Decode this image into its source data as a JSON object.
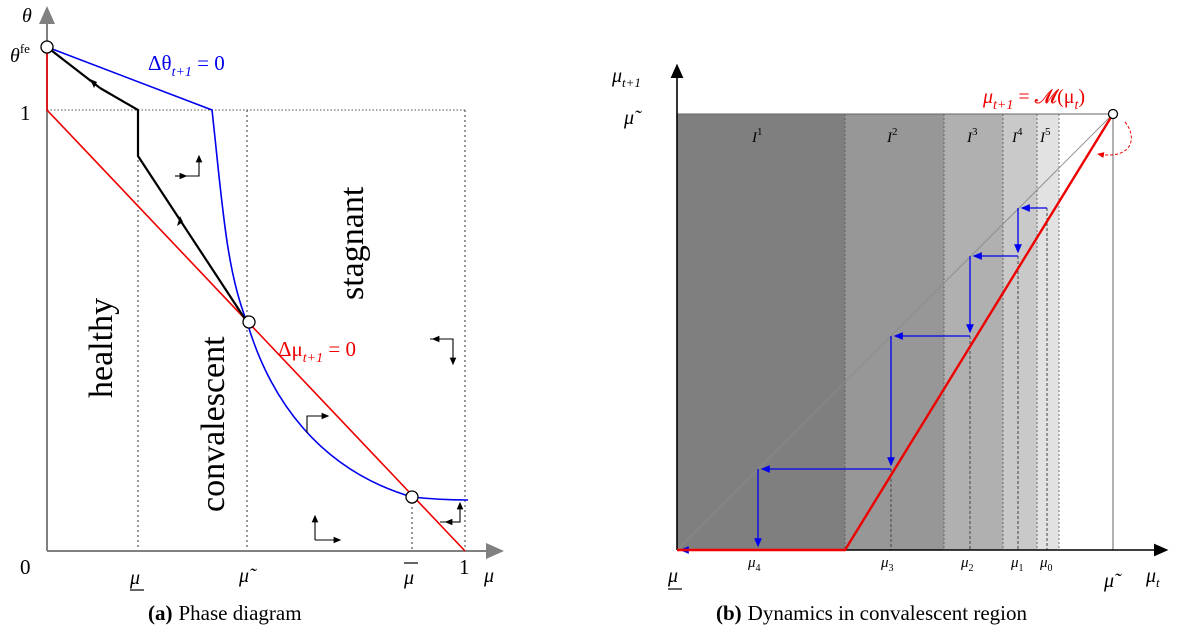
{
  "panel_a": {
    "caption_label": "(a)",
    "caption_text": "Phase diagram",
    "y_axis_label": "θ",
    "x_axis_label": "μ",
    "y_ticks": {
      "theta_fe": "θ",
      "theta_fe_sup": "fe",
      "one": "1",
      "zero": "0"
    },
    "x_ticks": {
      "mu_under": "μ",
      "mu_tilde": "μ̃",
      "mu_bar": "μ",
      "one": "1"
    },
    "region_labels": {
      "healthy": "healthy",
      "convalescent": "convalescent",
      "stagnant": "stagnant"
    },
    "curve_labels": {
      "delta_theta": "Δθ",
      "delta_theta_sub": "t+1",
      "delta_theta_rhs": " = 0",
      "delta_mu": "Δμ",
      "delta_mu_sub": "t+1",
      "delta_mu_rhs": " = 0"
    },
    "colors": {
      "delta_theta": "#0000ee",
      "delta_mu": "#ee0000",
      "path": "#000000"
    }
  },
  "panel_b": {
    "caption_label": "(b)",
    "caption_text": "Dynamics in convalescent region",
    "y_axis_label": "μ",
    "y_axis_sub": "t+1",
    "x_axis_label": "μ",
    "x_axis_sub": "t",
    "y_tick_mu_tilde": "μ̃",
    "map_label": "μ",
    "map_label_sub": "t+1",
    "map_label_rhs": " = 𝓜(μ",
    "map_label_rhs_sub": "t",
    "map_label_close": ")",
    "interval_labels": [
      {
        "base": "I",
        "sup": "1"
      },
      {
        "base": "I",
        "sup": "2"
      },
      {
        "base": "I",
        "sup": "3"
      },
      {
        "base": "I",
        "sup": "4"
      },
      {
        "base": "I",
        "sup": "5"
      }
    ],
    "x_ticks": [
      {
        "base": "μ",
        "sub": "4"
      },
      {
        "base": "μ",
        "sub": "3"
      },
      {
        "base": "μ",
        "sub": "2"
      },
      {
        "base": "μ",
        "sub": "1"
      },
      {
        "base": "μ",
        "sub": "0"
      }
    ],
    "x_tick_mu_under": "μ",
    "x_tick_mu_tilde": "μ̃",
    "interval_shades": [
      "#7f7f7f",
      "#979797",
      "#b0b0b0",
      "#c9c9c9",
      "#e2e2e2"
    ],
    "colors": {
      "map": "#ee0000",
      "cobweb": "#0000ee"
    }
  }
}
